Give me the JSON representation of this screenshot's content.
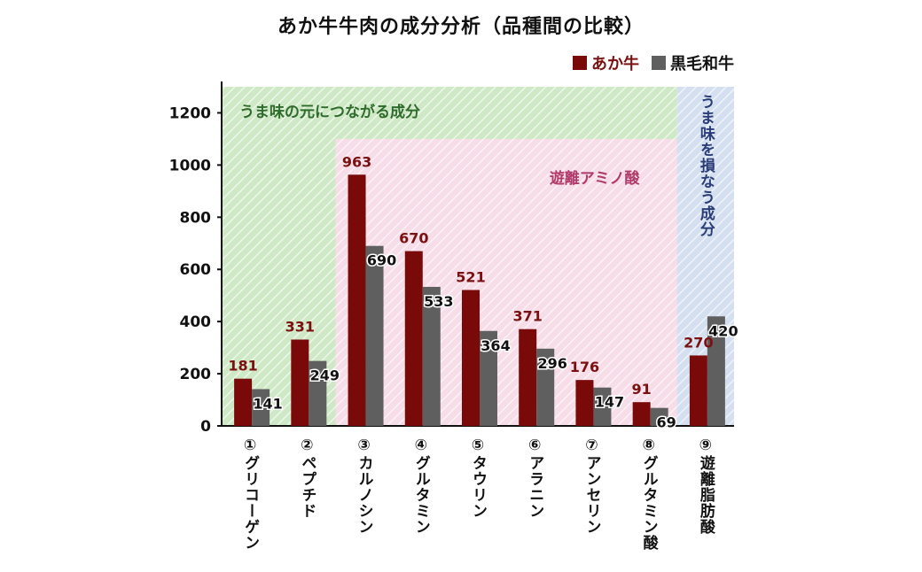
{
  "chart_data": {
    "type": "bar",
    "title": "あか牛牛肉の成分分析（品種間の比較）",
    "categories": [
      "①グリコーゲン",
      "②ペプチド",
      "③カルノシン",
      "④グルタミン",
      "⑤タウリン",
      "⑥アラニン",
      "⑦アンセリン",
      "⑧グルタミン酸",
      "⑨遊離脂肪酸"
    ],
    "series": [
      {
        "name": "あか牛",
        "values": [
          181,
          331,
          963,
          670,
          521,
          371,
          176,
          91,
          270
        ]
      },
      {
        "name": "黒毛和牛",
        "values": [
          141,
          249,
          690,
          533,
          364,
          296,
          147,
          69,
          420
        ]
      }
    ],
    "ylim": [
      0,
      1300
    ],
    "yticks": [
      0,
      200,
      400,
      600,
      800,
      1000,
      1200
    ],
    "regions": [
      {
        "label": "うま味の元につながる成分",
        "from_category": 0,
        "to_category": 7,
        "ymax": 1300,
        "color": "#cfe9c6"
      },
      {
        "label": "遊離アミノ酸",
        "from_category": 2,
        "to_category": 7,
        "ymax": 1100,
        "color": "#f6dde8"
      },
      {
        "label": "うま味を損なう成分",
        "from_category": 8,
        "to_category": 8,
        "ymax": 1300,
        "color": "#d4dff0"
      }
    ]
  },
  "colors": {
    "series_0": "#7a0a0a",
    "series_1": "#5f5f5f",
    "series_0_label": "#7a1010",
    "series_1_label": "#111111",
    "region_0_text": "#2f6b2c",
    "region_1_text": "#b03a6a",
    "region_2_text": "#2a3d78"
  }
}
